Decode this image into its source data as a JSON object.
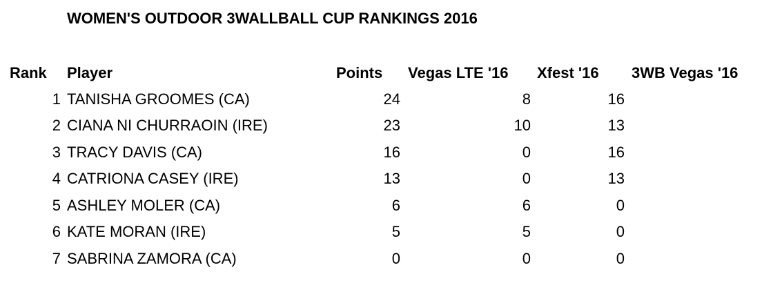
{
  "title": "WOMEN'S OUTDOOR 3WALLBALL CUP RANKINGS 2016",
  "headers": {
    "rank": "Rank",
    "player": "Player",
    "points": "Points",
    "vegas_lte": "Vegas LTE '16",
    "xfest": "Xfest '16",
    "vegas_3wb": "3WB Vegas '16"
  },
  "rows": [
    {
      "rank": "1",
      "player": "TANISHA GROOMES (CA)",
      "points": "24",
      "vegas_lte": "8",
      "xfest": "16",
      "vegas_3wb": ""
    },
    {
      "rank": "2",
      "player": "CIANA NI CHURRAOIN (IRE)",
      "points": "23",
      "vegas_lte": "10",
      "xfest": "13",
      "vegas_3wb": ""
    },
    {
      "rank": "3",
      "player": "TRACY DAVIS (CA)",
      "points": "16",
      "vegas_lte": "0",
      "xfest": "16",
      "vegas_3wb": ""
    },
    {
      "rank": "4",
      "player": "CATRIONA CASEY (IRE)",
      "points": "13",
      "vegas_lte": "0",
      "xfest": "13",
      "vegas_3wb": ""
    },
    {
      "rank": "5",
      "player": "ASHLEY MOLER (CA)",
      "points": "6",
      "vegas_lte": "6",
      "xfest": "0",
      "vegas_3wb": ""
    },
    {
      "rank": "6",
      "player": "KATE MORAN (IRE)",
      "points": "5",
      "vegas_lte": "5",
      "xfest": "0",
      "vegas_3wb": ""
    },
    {
      "rank": "7",
      "player": "SABRINA ZAMORA (CA)",
      "points": "0",
      "vegas_lte": "0",
      "xfest": "0",
      "vegas_3wb": ""
    }
  ]
}
